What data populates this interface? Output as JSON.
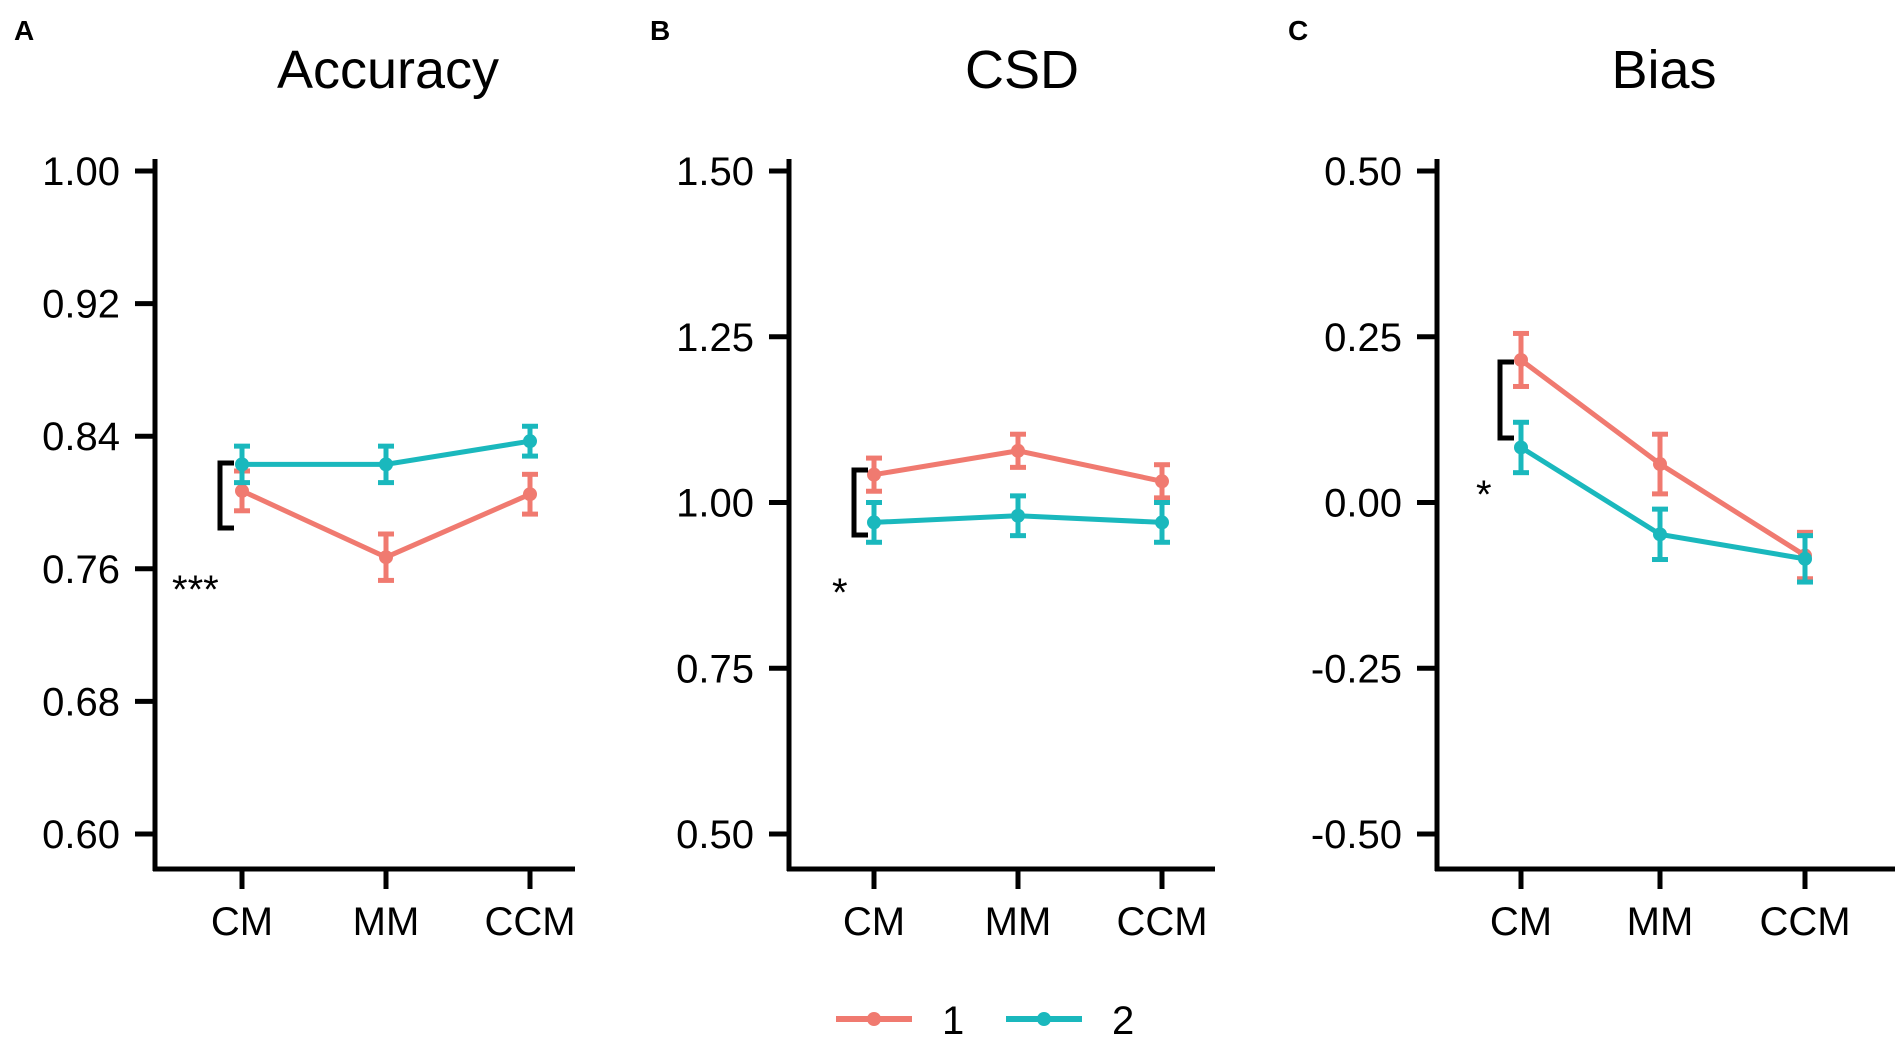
{
  "chart_data": [
    {
      "type": "line",
      "panel": "A",
      "title": "Accuracy",
      "categories": [
        "CM",
        "MM",
        "CCM"
      ],
      "ylim": [
        0.6,
        1.0
      ],
      "yticks": [
        "1.00",
        "0.92",
        "0.84",
        "0.76",
        "0.68",
        "0.60"
      ],
      "series": [
        {
          "name": "1",
          "color": "#F07A70",
          "values": [
            0.807,
            0.767,
            0.805
          ],
          "errors": [
            0.012,
            0.014,
            0.012
          ]
        },
        {
          "name": "2",
          "color": "#1AB8BD",
          "values": [
            0.823,
            0.823,
            0.837
          ],
          "errors": [
            0.011,
            0.011,
            0.009
          ]
        }
      ],
      "significance": "***"
    },
    {
      "type": "line",
      "panel": "B",
      "title": "CSD",
      "categories": [
        "CM",
        "MM",
        "CCM"
      ],
      "ylim": [
        0.5,
        1.5
      ],
      "yticks": [
        "1.50",
        "1.25",
        "1.00",
        "0.75",
        "0.50"
      ],
      "series": [
        {
          "name": "1",
          "color": "#F07A70",
          "values": [
            1.042,
            1.078,
            1.032
          ],
          "errors": [
            0.025,
            0.025,
            0.025
          ]
        },
        {
          "name": "2",
          "color": "#1AB8BD",
          "values": [
            0.97,
            0.98,
            0.97
          ],
          "errors": [
            0.03,
            0.03,
            0.03
          ]
        }
      ],
      "significance": "*"
    },
    {
      "type": "line",
      "panel": "C",
      "title": "Bias",
      "categories": [
        "CM",
        "MM",
        "CCM"
      ],
      "ylim": [
        -0.5,
        0.5
      ],
      "yticks": [
        "0.50",
        "0.25",
        "0.00",
        "-0.25",
        "-0.50"
      ],
      "series": [
        {
          "name": "1",
          "color": "#F07A70",
          "values": [
            0.215,
            0.058,
            -0.08
          ],
          "errors": [
            0.04,
            0.045,
            0.035
          ]
        },
        {
          "name": "2",
          "color": "#1AB8BD",
          "values": [
            0.083,
            -0.048,
            -0.085
          ],
          "errors": [
            0.038,
            0.038,
            0.035
          ]
        }
      ],
      "significance": "*"
    }
  ],
  "legend": [
    {
      "label": "1",
      "color": "#F07A70"
    },
    {
      "label": "2",
      "color": "#1AB8BD"
    }
  ]
}
